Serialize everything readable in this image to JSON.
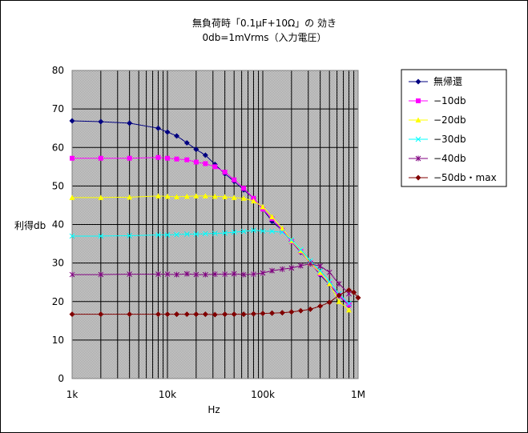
{
  "chart_data": {
    "type": "line",
    "title": "無負荷時「0.1μF+10Ω」の 効き",
    "subtitle": "0db=1mVrms（入力電圧）",
    "xlabel": "Hz",
    "ylabel": "利得db",
    "x_scale": "log",
    "xlim": [
      1000,
      1000000
    ],
    "ylim": [
      0,
      80
    ],
    "y_ticks": [
      0,
      10,
      20,
      30,
      40,
      50,
      60,
      70,
      80
    ],
    "x_tick_labels": [
      {
        "x": 1000,
        "label": "1k"
      },
      {
        "x": 10000,
        "label": "10k"
      },
      {
        "x": 100000,
        "label": "100k"
      },
      {
        "x": 1000000,
        "label": "1M"
      }
    ],
    "grid": true,
    "legend_position": "right",
    "series": [
      {
        "name": "無帰還",
        "color": "#000080",
        "marker": "diamond",
        "x": [
          1000,
          2000,
          4000,
          8000,
          10000,
          12500,
          16000,
          20000,
          25000,
          31500,
          40000,
          50000,
          63000,
          80000,
          100000,
          125000,
          160000,
          200000,
          250000,
          315000,
          400000,
          500000,
          630000,
          800000
        ],
        "y": [
          66.9,
          66.7,
          66.3,
          65.0,
          64.0,
          63.0,
          61.2,
          59.5,
          58.0,
          55.6,
          53.2,
          51.2,
          49.0,
          46.8,
          44.0,
          40.8,
          38.5,
          35.6,
          32.8,
          30.2,
          26.9,
          24.4,
          21.5,
          19.0
        ]
      },
      {
        "name": "−10db",
        "color": "#ff00ff",
        "marker": "square",
        "x": [
          1000,
          2000,
          4000,
          8000,
          10000,
          12500,
          16000,
          20000,
          25000,
          31500,
          40000,
          50000,
          63000,
          80000,
          100000,
          125000,
          160000,
          200000,
          250000,
          315000,
          400000,
          500000,
          630000,
          800000
        ],
        "y": [
          57.2,
          57.2,
          57.2,
          57.4,
          57.2,
          57.0,
          56.8,
          56.2,
          55.8,
          55.0,
          53.6,
          51.6,
          49.4,
          46.8,
          44.0,
          41.5,
          38.5,
          35.6,
          33.0,
          30.0,
          27.2,
          24.6,
          21.6,
          19.2
        ]
      },
      {
        "name": "−20db",
        "color": "#ffff00",
        "marker": "triangle",
        "x": [
          1000,
          2000,
          4000,
          8000,
          10000,
          12500,
          16000,
          20000,
          25000,
          31500,
          40000,
          50000,
          63000,
          80000,
          100000,
          125000,
          160000,
          200000,
          250000,
          315000,
          400000,
          500000,
          630000,
          800000
        ],
        "y": [
          47.0,
          47.0,
          47.1,
          47.4,
          47.3,
          47.2,
          47.3,
          47.4,
          47.4,
          47.3,
          47.2,
          47.0,
          46.8,
          46.1,
          44.6,
          42.0,
          39.0,
          35.8,
          33.2,
          30.0,
          27.5,
          24.6,
          20.0,
          17.8
        ]
      },
      {
        "name": "−30db",
        "color": "#00ffff",
        "marker": "cross",
        "x": [
          1000,
          2000,
          4000,
          8000,
          10000,
          12500,
          16000,
          20000,
          25000,
          31500,
          40000,
          50000,
          63000,
          80000,
          100000,
          125000,
          160000,
          200000,
          250000,
          315000,
          400000,
          500000,
          630000,
          800000
        ],
        "y": [
          37.0,
          37.0,
          37.1,
          37.3,
          37.3,
          37.4,
          37.5,
          37.5,
          37.6,
          37.7,
          37.8,
          38.0,
          38.2,
          38.5,
          38.3,
          38.2,
          38.0,
          36.0,
          33.5,
          30.6,
          28.0,
          25.2,
          22.0,
          19.5
        ]
      },
      {
        "name": "−40db",
        "color": "#800080",
        "marker": "star",
        "x": [
          1000,
          2000,
          4000,
          8000,
          10000,
          12500,
          16000,
          20000,
          25000,
          31500,
          40000,
          50000,
          63000,
          80000,
          100000,
          125000,
          160000,
          200000,
          250000,
          315000,
          400000,
          500000,
          630000,
          800000
        ],
        "y": [
          27.0,
          27.0,
          27.1,
          27.1,
          27.1,
          27.0,
          27.2,
          27.0,
          27.0,
          27.1,
          27.1,
          27.2,
          27.0,
          27.1,
          27.4,
          28.0,
          28.4,
          28.7,
          29.3,
          29.8,
          29.2,
          27.6,
          24.6,
          22.0
        ]
      },
      {
        "name": "−50db・max",
        "color": "#800000",
        "marker": "diamond",
        "x": [
          1000,
          2000,
          4000,
          8000,
          10000,
          12500,
          16000,
          20000,
          25000,
          31500,
          40000,
          50000,
          63000,
          80000,
          100000,
          125000,
          160000,
          200000,
          250000,
          315000,
          400000,
          500000,
          630000,
          800000,
          900000,
          1000000
        ],
        "y": [
          16.7,
          16.7,
          16.7,
          16.7,
          16.7,
          16.7,
          16.7,
          16.7,
          16.7,
          16.6,
          16.7,
          16.7,
          16.7,
          16.8,
          16.9,
          17.0,
          17.1,
          17.3,
          17.6,
          18.0,
          18.8,
          19.8,
          21.6,
          23.0,
          22.4,
          21.0
        ]
      }
    ]
  }
}
